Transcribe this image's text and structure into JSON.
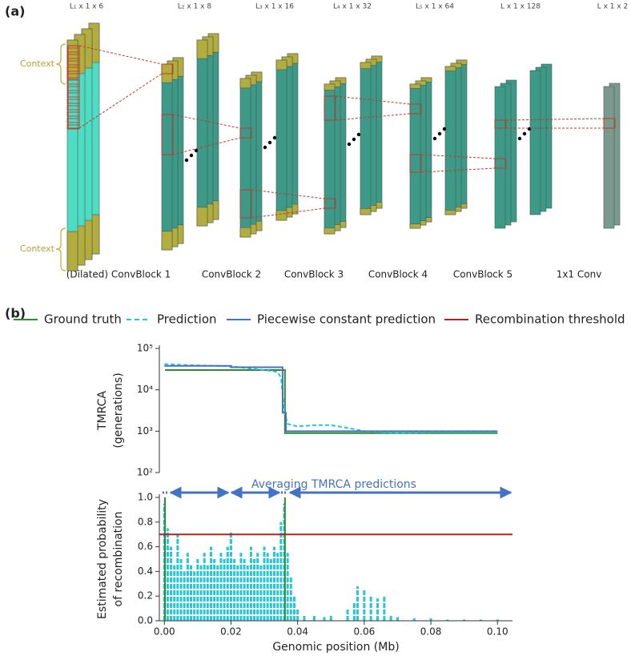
{
  "panel_a": {
    "label": "(a)",
    "dimensions": [
      "L₁ x 1 x 6",
      "L₂ x 1 x 8",
      "L₃ x 1 x 16",
      "L₄ x 1 x 32",
      "L₅ x 1 x 64",
      "L x 1 x 128",
      "L x 1 x 2"
    ],
    "blocks": [
      "(Dilated) ConvBlock 1",
      "ConvBlock 2",
      "ConvBlock 3",
      "ConvBlock 4",
      "ConvBlock 5",
      "1x1 Conv"
    ],
    "context": [
      "Context",
      "Context"
    ]
  },
  "panel_b": {
    "label": "(b)"
  },
  "chart_data": [
    {
      "type": "line",
      "ylabel": [
        "TMRCA",
        "(generations)"
      ],
      "log_y": true,
      "xlim": [
        -0.0015,
        0.1045
      ],
      "ylim": [
        100,
        100000
      ],
      "yticks": [
        {
          "value": 100000,
          "label": "10⁵"
        },
        {
          "value": 10000,
          "label": "10⁴"
        },
        {
          "value": 1000,
          "label": "10³"
        },
        {
          "value": 100,
          "label": "10²"
        }
      ],
      "series": [
        {
          "name": "Ground truth",
          "color": "#2e8b2e",
          "dashed": false,
          "x": [
            0.0002,
            0.0362,
            0.0362,
            0.1
          ],
          "values": [
            30000,
            30000,
            900,
            900
          ]
        },
        {
          "name": "Prediction",
          "color": "#22c8d8",
          "dashed": true,
          "x": [
            0,
            0.005,
            0.01,
            0.02,
            0.03,
            0.034,
            0.035,
            0.0355,
            0.036,
            0.037,
            0.04,
            0.045,
            0.05,
            0.055,
            0.06,
            0.07,
            0.08,
            0.09,
            0.1
          ],
          "values": [
            42000,
            40000,
            39000,
            37000,
            30000,
            27000,
            20000,
            8000,
            3000,
            1500,
            1300,
            1400,
            1400,
            1200,
            1000,
            900,
            950,
            950,
            950
          ]
        },
        {
          "name": "Piecewise constant prediction",
          "color": "#4472c4",
          "dashed": false,
          "x": [
            0,
            0.02,
            0.02,
            0.0355,
            0.0355,
            0.0365,
            0.0365,
            0.1
          ],
          "values": [
            38000,
            38000,
            35000,
            35000,
            2800,
            2800,
            1000,
            1000
          ]
        }
      ]
    },
    {
      "type": "stem",
      "ylabel": [
        "Estimated probability",
        "of recombination"
      ],
      "xlabel": "Genomic position (Mb)",
      "annotation": "Averaging TMRCA predictions",
      "xlim": [
        -0.0015,
        0.1045
      ],
      "ylim": [
        0,
        1.0
      ],
      "yticks": [
        {
          "value": 0,
          "label": "0.0"
        },
        0.2,
        0.4,
        0.6,
        0.8,
        {
          "value": 1,
          "label": "1.0"
        }
      ],
      "xticks": [
        {
          "value": 0,
          "label": "0.00"
        },
        0.02,
        0.04,
        0.06,
        0.08,
        {
          "value": 0.1,
          "label": "0.10"
        }
      ],
      "threshold": {
        "name": "Recombination threshold",
        "color": "#b22222",
        "value": 0.7
      },
      "truth": {
        "color": "#2e8b2e",
        "x": [
          0.0002,
          0.0362
        ],
        "values": [
          1.0,
          1.0
        ]
      },
      "stems": {
        "color": "#22c8d8",
        "x": [
          0,
          0.001,
          0.002,
          0.003,
          0.004,
          0.005,
          0.006,
          0.007,
          0.008,
          0.009,
          0.01,
          0.011,
          0.012,
          0.013,
          0.014,
          0.015,
          0.016,
          0.017,
          0.018,
          0.019,
          0.02,
          0.021,
          0.022,
          0.023,
          0.024,
          0.025,
          0.026,
          0.027,
          0.028,
          0.029,
          0.03,
          0.031,
          0.032,
          0.033,
          0.034,
          0.035,
          0.036,
          0.037,
          0.038,
          0.039,
          0.04,
          0.042,
          0.045,
          0.048,
          0.05,
          0.055,
          0.057,
          0.058,
          0.06,
          0.062,
          0.064,
          0.066,
          0.068,
          0.07,
          0.075,
          0.08,
          0.085,
          0.09,
          0.095,
          0.1
        ],
        "values": [
          0.95,
          0.75,
          0.6,
          0.45,
          0.7,
          0.5,
          0.4,
          0.55,
          0.45,
          0.4,
          0.5,
          0.45,
          0.55,
          0.45,
          0.6,
          0.5,
          0.45,
          0.55,
          0.5,
          0.6,
          0.72,
          0.5,
          0.45,
          0.55,
          0.5,
          0.45,
          0.6,
          0.5,
          0.55,
          0.45,
          0.6,
          0.55,
          0.5,
          0.6,
          0.55,
          0.8,
          0.95,
          0.55,
          0.35,
          0.2,
          0.1,
          0.05,
          0.04,
          0.03,
          0.04,
          0.1,
          0.15,
          0.28,
          0.25,
          0.2,
          0.18,
          0.2,
          0.05,
          0.03,
          0.02,
          0.02,
          0.01,
          0.01,
          0.01,
          0.01
        ]
      }
    }
  ]
}
